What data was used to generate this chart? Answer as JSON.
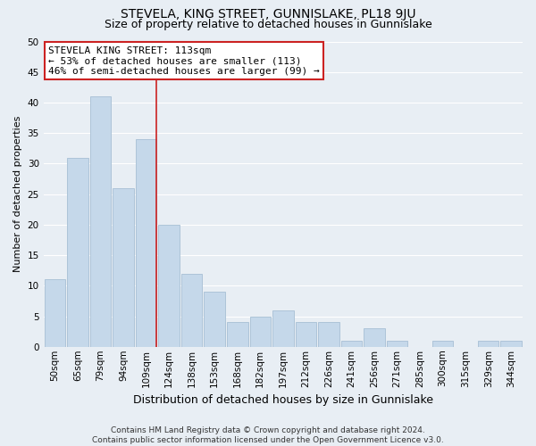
{
  "title": "STEVELA, KING STREET, GUNNISLAKE, PL18 9JU",
  "subtitle": "Size of property relative to detached houses in Gunnislake",
  "xlabel": "Distribution of detached houses by size in Gunnislake",
  "ylabel": "Number of detached properties",
  "bin_labels": [
    "50sqm",
    "65sqm",
    "79sqm",
    "94sqm",
    "109sqm",
    "124sqm",
    "138sqm",
    "153sqm",
    "168sqm",
    "182sqm",
    "197sqm",
    "212sqm",
    "226sqm",
    "241sqm",
    "256sqm",
    "271sqm",
    "285sqm",
    "300sqm",
    "315sqm",
    "329sqm",
    "344sqm"
  ],
  "bar_heights": [
    11,
    31,
    41,
    26,
    34,
    20,
    12,
    9,
    4,
    5,
    6,
    4,
    4,
    1,
    3,
    1,
    0,
    1,
    0,
    1,
    1
  ],
  "bar_color": "#c5d8ea",
  "bar_edge_color": "#adc4d8",
  "vline_index": 4,
  "vline_color": "#cc2222",
  "ylim": [
    0,
    50
  ],
  "yticks": [
    0,
    5,
    10,
    15,
    20,
    25,
    30,
    35,
    40,
    45,
    50
  ],
  "annotation_title": "STEVELA KING STREET: 113sqm",
  "annotation_line1": "← 53% of detached houses are smaller (113)",
  "annotation_line2": "46% of semi-detached houses are larger (99) →",
  "annotation_box_facecolor": "#ffffff",
  "annotation_box_edgecolor": "#cc2222",
  "footer_line1": "Contains HM Land Registry data © Crown copyright and database right 2024.",
  "footer_line2": "Contains public sector information licensed under the Open Government Licence v3.0.",
  "background_color": "#e8eef4",
  "grid_color": "#ffffff",
  "title_fontsize": 10,
  "subtitle_fontsize": 9,
  "xlabel_fontsize": 9,
  "ylabel_fontsize": 8,
  "tick_fontsize": 7.5,
  "annotation_fontsize": 8,
  "footer_fontsize": 6.5
}
